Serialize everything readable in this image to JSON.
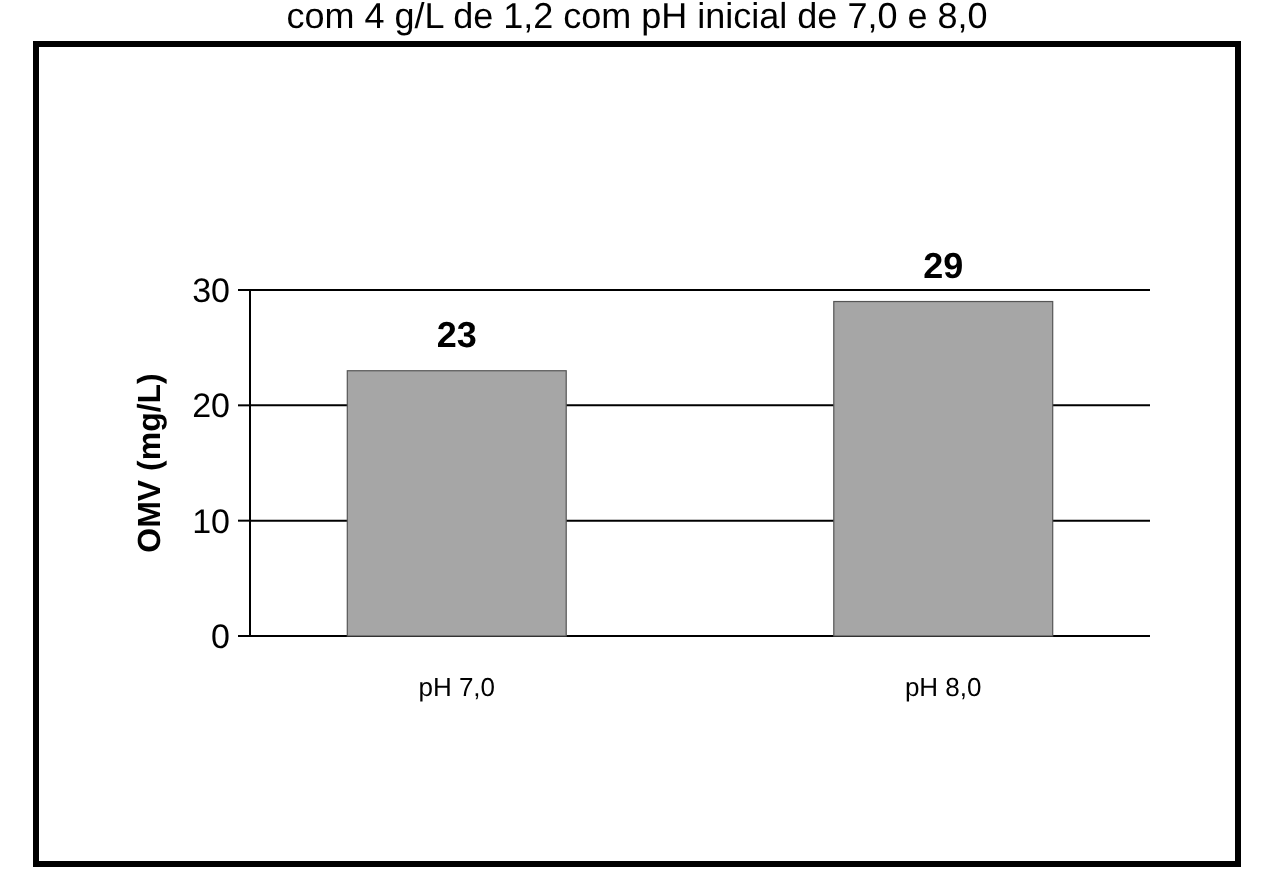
{
  "chart_data": {
    "type": "bar",
    "title": "com 4 g/L de 1,2 com pH inicial de 7,0 e 8,0",
    "ylabel": "OMV (mg/L)",
    "categories": [
      "pH 7,0",
      "pH 8,0"
    ],
    "values": [
      23,
      29
    ],
    "color": "#a6a6a6",
    "data_labels": true,
    "ylim": [
      0,
      30
    ],
    "yticks": [
      0,
      10,
      20,
      30
    ],
    "grid": "y"
  }
}
